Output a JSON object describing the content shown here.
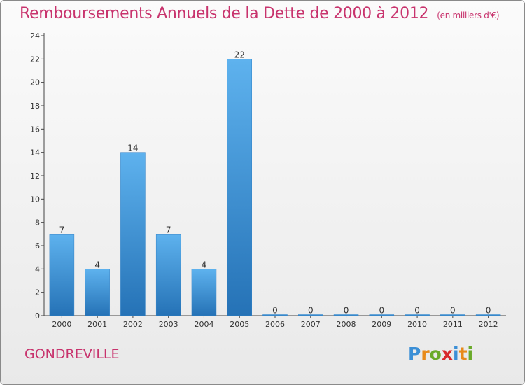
{
  "chart_data": {
    "type": "bar",
    "title": "Remboursements Annuels de la Dette de 2000 à 2012",
    "subtitle": "(en milliers d'€)",
    "categories": [
      "2000",
      "2001",
      "2002",
      "2003",
      "2004",
      "2005",
      "2006",
      "2007",
      "2008",
      "2009",
      "2010",
      "2011",
      "2012"
    ],
    "values": [
      7,
      4,
      14,
      7,
      4,
      22,
      0,
      0,
      0,
      0,
      0,
      0,
      0
    ],
    "ylim": [
      0,
      24
    ],
    "yticks": [
      0,
      2,
      4,
      6,
      8,
      10,
      12,
      14,
      16,
      18,
      20,
      22,
      24
    ],
    "grid": false,
    "bar_color": "#3a8fd4",
    "accent_color": "#c8336d"
  },
  "commune": "GONDREVILLE",
  "logo": {
    "letters": [
      "P",
      "r",
      "o",
      "x",
      "i",
      "t",
      "i"
    ],
    "colors": [
      "#3b8fd6",
      "#e88a1a",
      "#6aaa2a",
      "#d8282b",
      "#3b8fd6",
      "#e88a1a",
      "#6aaa2a"
    ]
  }
}
